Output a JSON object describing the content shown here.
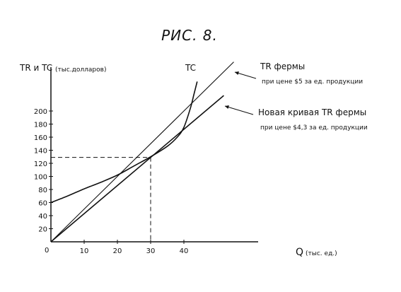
{
  "chart_data": {
    "type": "line",
    "title": "РИС. 8.",
    "ylabel_main": "TR и TC",
    "ylabel_units": "(тыс.долларов)",
    "xlabel_main": "Q",
    "xlabel_units": "(тыс. ед.)",
    "origin_label": "0",
    "xticks": [
      10,
      20,
      30,
      40
    ],
    "yticks": [
      20,
      40,
      60,
      80,
      100,
      120,
      140,
      160,
      180,
      200
    ],
    "xlim": [
      0,
      58
    ],
    "ylim": [
      0,
      230
    ],
    "grid": false,
    "series": [
      {
        "name": "TC",
        "style": "curve",
        "points": [
          [
            0,
            60
          ],
          [
            5,
            70
          ],
          [
            10,
            81
          ],
          [
            15,
            91
          ],
          [
            20,
            102
          ],
          [
            25,
            116
          ],
          [
            30,
            130
          ],
          [
            35,
            146
          ],
          [
            38,
            160
          ],
          [
            40,
            175
          ],
          [
            42,
            205
          ],
          [
            43,
            225
          ],
          [
            44,
            245
          ]
        ]
      },
      {
        "name": "TR фермы при цене $5 за ед. продукции",
        "label_main": "TR фермы",
        "label_sub": "при цене $5 за ед. продукции",
        "style": "line",
        "points": [
          [
            0,
            0
          ],
          [
            55,
            275
          ]
        ]
      },
      {
        "name": "Новая кривая TR фермы при цене $4,3 за ед. продукции",
        "label_main": "Новая кривая TR фермы",
        "label_sub": "при цене $4,3 за ед. продукции",
        "style": "line",
        "points": [
          [
            0,
            0
          ],
          [
            52,
            223.6
          ]
        ]
      }
    ],
    "annotations": {
      "dashed_x": 30,
      "dashed_y": 129,
      "tc_label": "TC"
    }
  }
}
